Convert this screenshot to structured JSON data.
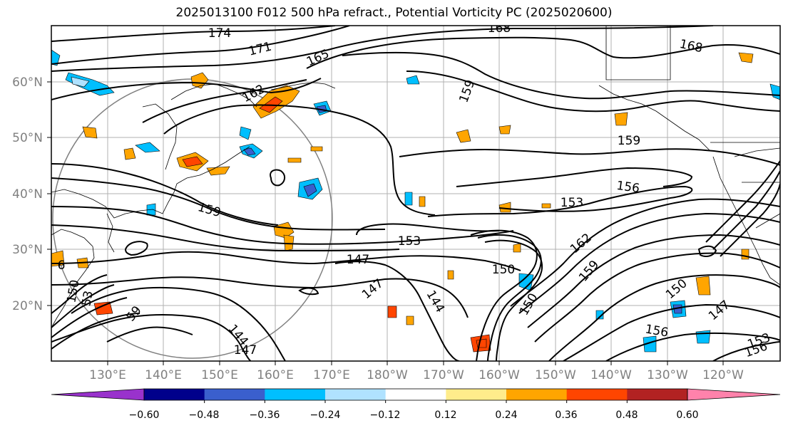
{
  "title": "2025013100 F012 500 hPa refract., Potential Vorticity PC (2025020600)",
  "lat_ticks": [
    "60°N",
    "50°N",
    "40°N",
    "30°N",
    "20°N"
  ],
  "lon_ticks": [
    "130°E",
    "140°E",
    "150°E",
    "160°E",
    "170°E",
    "180°W",
    "170°W",
    "160°W",
    "150°W",
    "140°W",
    "130°W",
    "120°W"
  ],
  "colorbar": {
    "colors": [
      "#9932cc",
      "#00008b",
      "#3a5fcd",
      "#00bfff",
      "#b0e2ff",
      "#ffffff",
      "#ffec8b",
      "#ffa500",
      "#ff4500",
      "#b22222",
      "#ff82ab"
    ],
    "tick_labels": [
      "−0.60",
      "−0.48",
      "−0.36",
      "−0.24",
      "−0.12",
      "0.12",
      "0.24",
      "0.36",
      "0.48",
      "0.60"
    ]
  },
  "contour_labels": [
    "174",
    "171",
    "165",
    "168",
    "168",
    "162",
    "159",
    "159",
    "159",
    "156",
    "153",
    "153",
    "150",
    "147",
    "147",
    "147",
    "144",
    "162",
    "150",
    "159",
    "156",
    "147",
    "153",
    "156",
    "150",
    "53",
    "150",
    "6",
    "59",
    "144"
  ]
}
